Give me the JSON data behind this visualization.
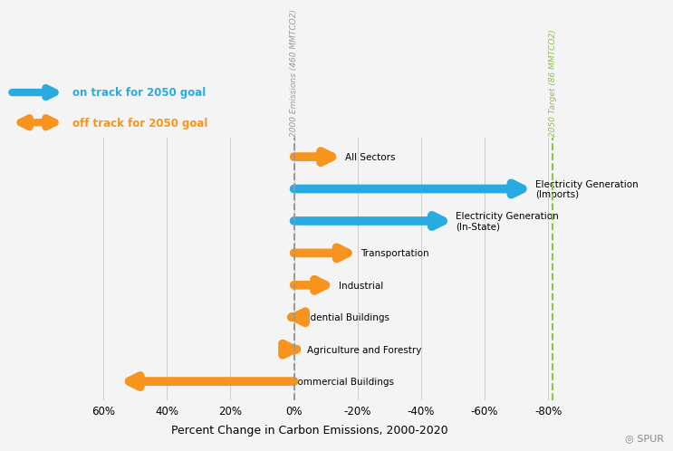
{
  "sectors": [
    {
      "label": "All Sectors",
      "value": -15,
      "color": "#f7941d",
      "on_track": false,
      "y": 7
    },
    {
      "label": "Electricity Generation\n(Imports)",
      "value": -75,
      "color": "#29abe2",
      "on_track": true,
      "y": 6
    },
    {
      "label": "Electricity Generation\n(In-State)",
      "value": -50,
      "color": "#29abe2",
      "on_track": true,
      "y": 5
    },
    {
      "label": "Transportation",
      "value": -20,
      "color": "#f7941d",
      "on_track": false,
      "y": 4
    },
    {
      "label": "Industrial",
      "value": -13,
      "color": "#f7941d",
      "on_track": false,
      "y": 3
    },
    {
      "label": "Residential Buildings",
      "value": 3,
      "color": "#f7941d",
      "on_track": false,
      "y": 2
    },
    {
      "label": "Agriculture and Forestry",
      "value": -3,
      "color": "#f7941d",
      "on_track": false,
      "y": 1
    },
    {
      "label": "Commercial Buildings",
      "value": 55,
      "color": "#f7941d",
      "on_track": false,
      "y": 0
    }
  ],
  "blue_color": "#29abe2",
  "orange_color": "#f7941d",
  "green_color": "#8dc63f",
  "dashed_line_color": "#999999",
  "xlim_left": 75,
  "xlim_right": -85,
  "xticks": [
    60,
    40,
    20,
    0,
    -20,
    -40,
    -60,
    -80
  ],
  "xticklabels": [
    "60%",
    "40%",
    "20%",
    "0%",
    "-20%",
    "-40%",
    "-60%",
    "-80%"
  ],
  "xlabel": "Percent Change in Carbon Emissions, 2000-2020",
  "target_line_x": -81.5,
  "ref_label": "2000 Emissions (460 MMTCO2)",
  "target_label": "2050 Target (86 MMTCO2)",
  "legend_on_track": "on track for 2050 goal",
  "legend_off_track": "off track for 2050 goal",
  "background_color": "#f4f4f4",
  "arrow_lw": 7,
  "arrow_mutation_scale": 22
}
